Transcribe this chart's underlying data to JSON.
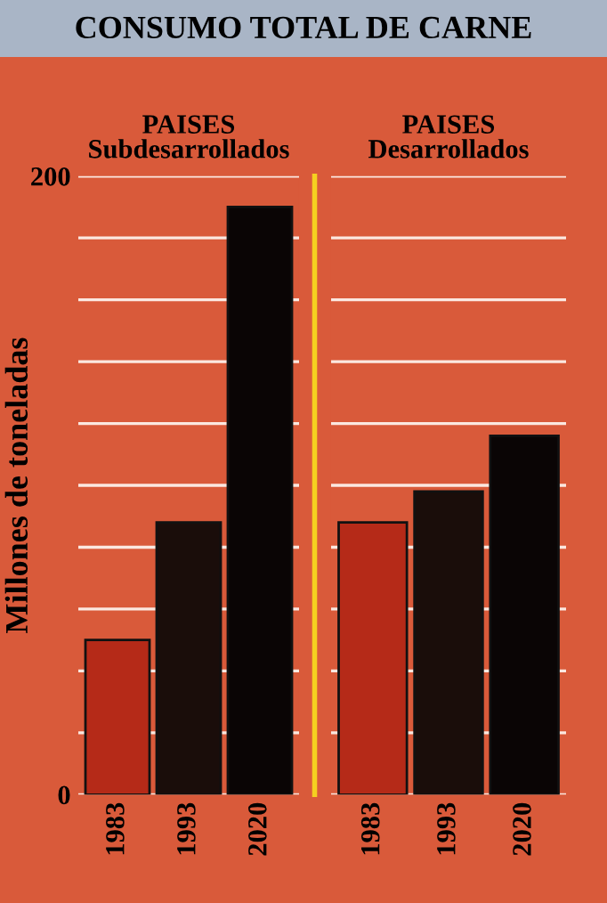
{
  "chart_data": [
    {
      "type": "bar",
      "title": "CONSUMO TOTAL DE CARNE",
      "subtitle": "PAISES\nSubdesarrollados",
      "ylabel": "Millones de toneladas",
      "categories": [
        "1983",
        "1993",
        "2020"
      ],
      "values": [
        50,
        88,
        190
      ],
      "colors": [
        "#b52a18",
        "#1a0d0a",
        "#0a0505"
      ],
      "ylim": [
        0,
        200
      ],
      "yticks": [
        0,
        {
          "value": 20,
          "label": null
        },
        {
          "value": 40,
          "label": null
        },
        {
          "value": 60,
          "label": null
        },
        {
          "value": 80,
          "label": null
        },
        {
          "value": 100,
          "label": null
        },
        {
          "value": 120,
          "label": null
        },
        {
          "value": 140,
          "label": null
        },
        {
          "value": 160,
          "label": null
        },
        {
          "value": 180,
          "label": null
        },
        200
      ],
      "grid": "y"
    },
    {
      "type": "bar",
      "subtitle": "PAISES\nDesarrollados",
      "categories": [
        "1983",
        "1993",
        "2020"
      ],
      "values": [
        88,
        98,
        116
      ],
      "colors": [
        "#b52a18",
        "#1a0d0a",
        "#0a0505"
      ],
      "ylim": [
        0,
        200
      ],
      "yticks": [
        0,
        {
          "value": 20,
          "label": null
        },
        {
          "value": 40,
          "label": null
        },
        {
          "value": 60,
          "label": null
        },
        {
          "value": 80,
          "label": null
        },
        {
          "value": 100,
          "label": null
        },
        {
          "value": 120,
          "label": null
        },
        {
          "value": 140,
          "label": null
        },
        {
          "value": 160,
          "label": null
        },
        {
          "value": 180,
          "label": null
        },
        200
      ],
      "grid": "y",
      "tick_labels": "x"
    }
  ]
}
